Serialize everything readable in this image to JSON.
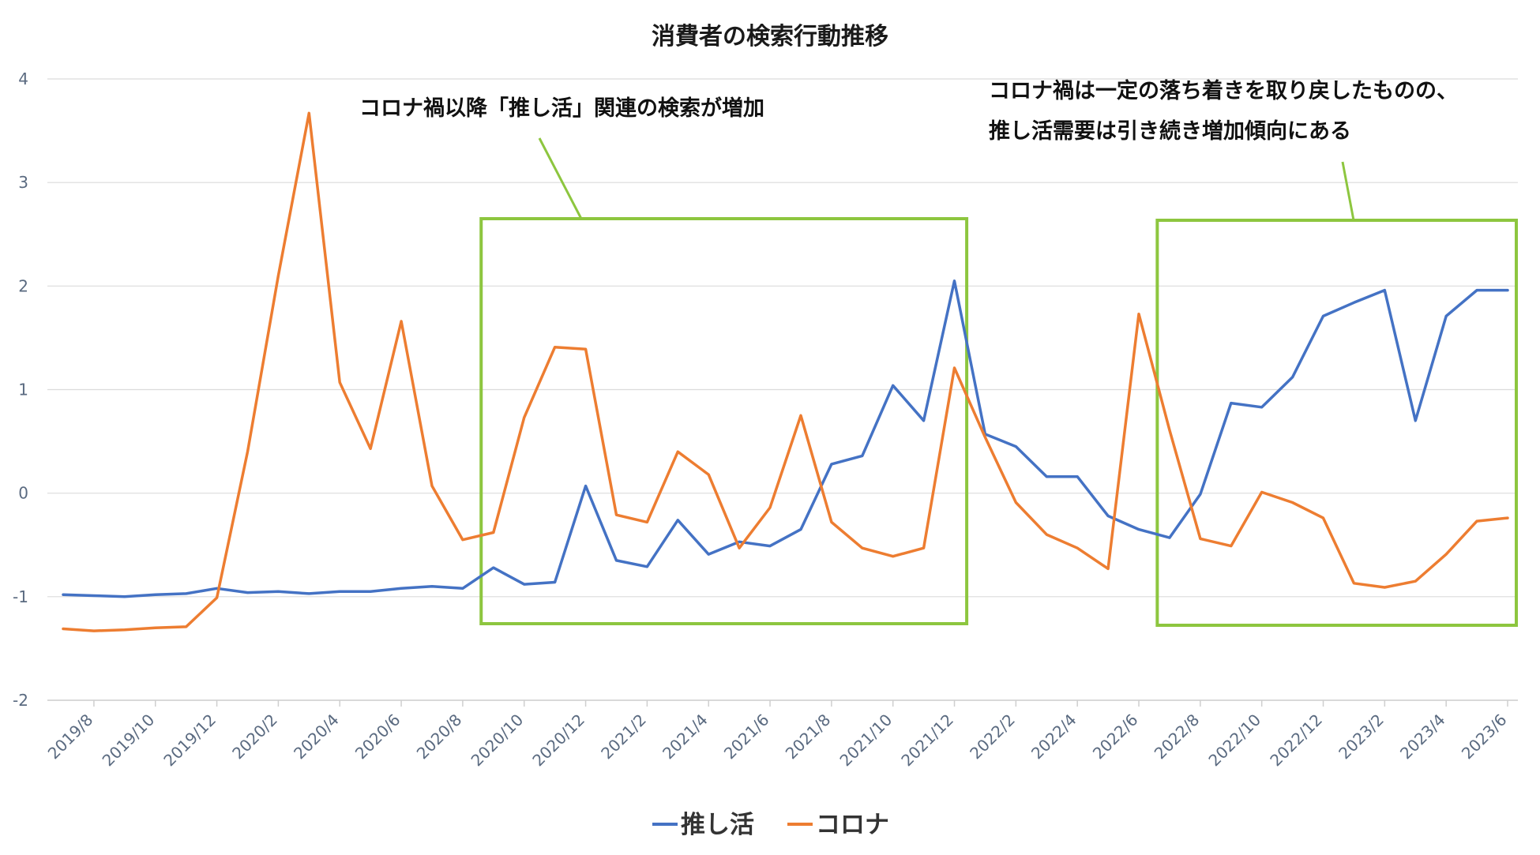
{
  "chart_data": {
    "type": "line",
    "title": "消費者の検索行動推移",
    "xlabel": "",
    "ylabel": "",
    "ylim": [
      -2,
      4
    ],
    "yticks": [
      "-2",
      "-1",
      "0",
      "1",
      "2",
      "3",
      "4"
    ],
    "grid": true,
    "legend_position": "bottom",
    "x_tick_labels": [
      "2019/8",
      "2019/10",
      "2019/12",
      "2020/2",
      "2020/4",
      "2020/6",
      "2020/8",
      "2020/10",
      "2020/12",
      "2021/2",
      "2021/4",
      "2021/6",
      "2021/8",
      "2021/10",
      "2021/12",
      "2022/2",
      "2022/4",
      "2022/6",
      "2022/8",
      "2022/10",
      "2022/12",
      "2023/2",
      "2023/4",
      "2023/6"
    ],
    "x": [
      "2019/8",
      "2019/9",
      "2019/10",
      "2019/11",
      "2019/12",
      "2020/1",
      "2020/2",
      "2020/3",
      "2020/4",
      "2020/5",
      "2020/6",
      "2020/7",
      "2020/8",
      "2020/9",
      "2020/10",
      "2020/11",
      "2020/12",
      "2021/1",
      "2021/2",
      "2021/3",
      "2021/4",
      "2021/5",
      "2021/6",
      "2021/7",
      "2021/8",
      "2021/9",
      "2021/10",
      "2021/11",
      "2021/12",
      "2022/1",
      "2022/2",
      "2022/3",
      "2022/4",
      "2022/5",
      "2022/6",
      "2022/7",
      "2022/8",
      "2022/9",
      "2022/10",
      "2022/11",
      "2022/12",
      "2023/1",
      "2023/2",
      "2023/3",
      "2023/4",
      "2023/5",
      "2023/6",
      "2023/7"
    ],
    "series": [
      {
        "name": "推し活",
        "color": "#4472c4",
        "values": [
          -0.98,
          -0.99,
          -1.0,
          -0.98,
          -0.97,
          -0.92,
          -0.96,
          -0.95,
          -0.97,
          -0.95,
          -0.95,
          -0.92,
          -0.9,
          -0.92,
          -0.72,
          -0.88,
          -0.86,
          0.07,
          -0.65,
          -0.71,
          -0.26,
          -0.59,
          -0.47,
          -0.51,
          -0.35,
          0.28,
          0.36,
          1.04,
          0.7,
          2.05,
          0.57,
          0.45,
          0.16,
          0.16,
          -0.22,
          -0.35,
          -0.43,
          -0.01,
          0.87,
          0.83,
          1.12,
          1.71,
          1.84,
          1.96,
          0.7,
          1.71,
          1.96,
          1.96
        ]
      },
      {
        "name": "コロナ",
        "color": "#ed7d31",
        "values": [
          -1.31,
          -1.33,
          -1.32,
          -1.3,
          -1.29,
          -1.01,
          0.4,
          2.1,
          3.67,
          1.07,
          0.43,
          1.66,
          0.07,
          -0.45,
          -0.38,
          0.73,
          1.41,
          1.39,
          -0.21,
          -0.28,
          0.4,
          0.18,
          -0.53,
          -0.14,
          0.75,
          -0.28,
          -0.53,
          -0.61,
          -0.53,
          1.21,
          0.54,
          -0.09,
          -0.4,
          -0.53,
          -0.73,
          1.73,
          0.61,
          -0.44,
          -0.51,
          0.01,
          -0.09,
          -0.24,
          -0.87,
          -0.91,
          -0.85,
          -0.59,
          -0.27,
          -0.24
        ]
      }
    ],
    "annotations": [
      {
        "lines": [
          "コロナ禍以降「推し活」関連の検索が増加"
        ],
        "box_range": [
          "2020/10",
          "2022/1"
        ]
      },
      {
        "lines": [
          "コロナ禍は一定の落ち着きを取り戻したものの、",
          "推し活需要は引き続き増加傾向にある"
        ],
        "box_range": [
          "2022/8",
          "2023/7"
        ]
      }
    ],
    "annotation_color": "#8dc63f"
  }
}
